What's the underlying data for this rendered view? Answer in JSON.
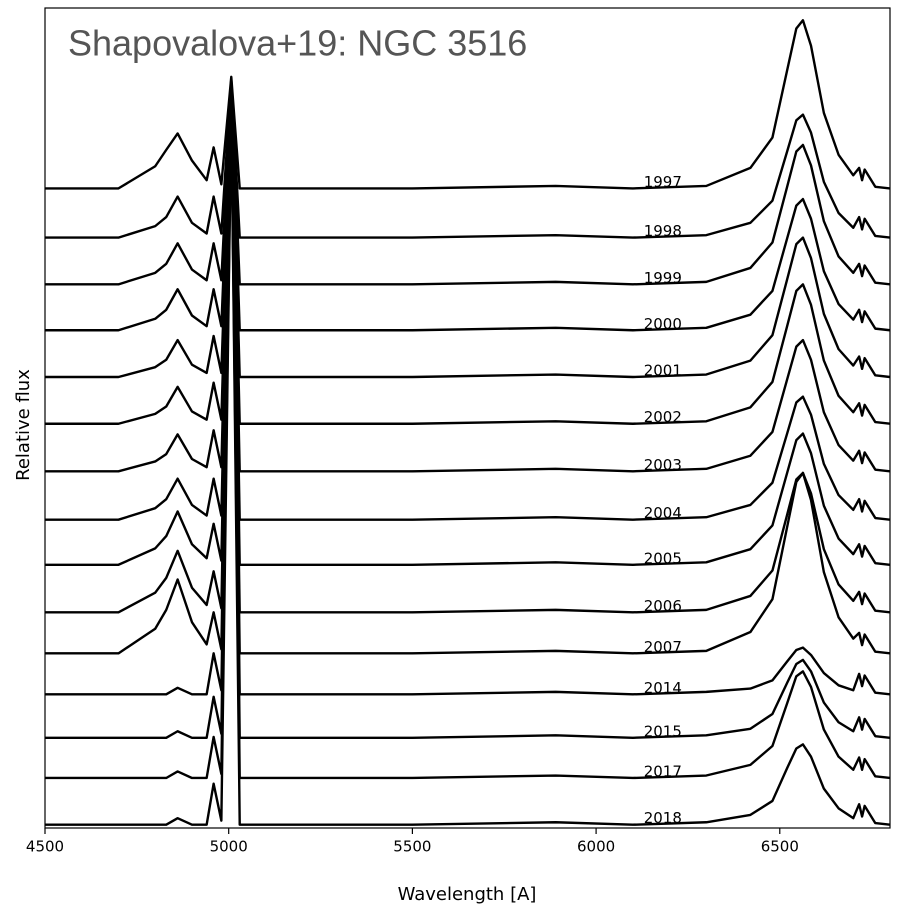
{
  "chart_data": {
    "type": "line",
    "title": "Shapovalova+19: NGC 3516",
    "x_label": "Wavelength [A]",
    "y_label": "Relative flux",
    "xlim": [
      4500,
      6800
    ],
    "xticks": [
      4500,
      5000,
      5500,
      6000,
      6500
    ],
    "ylim": [
      0,
      100
    ],
    "x": [
      4500,
      4700,
      4800,
      4830,
      4861,
      4900,
      4940,
      4959,
      4980,
      5007,
      5030,
      5200,
      5500,
      5890,
      6100,
      6300,
      6420,
      6480,
      6520,
      6545,
      6563,
      6585,
      6620,
      6660,
      6700,
      6716,
      6724,
      6731,
      6760,
      6800
    ],
    "series": [
      {
        "name": "1997",
        "color": "#000000",
        "values": [
          78,
          78,
          80.7,
          82.7,
          84.7,
          81.4,
          79.0,
          83.0,
          78.5,
          91.6,
          78,
          78,
          78,
          78.3,
          78,
          78.3,
          80.5,
          84.2,
          92.4,
          97.5,
          98.5,
          95.4,
          87.2,
          82.1,
          79.6,
          80.5,
          79,
          80.3,
          78.2,
          78
        ]
      },
      {
        "name": "1998",
        "color": "#000000",
        "values": [
          72,
          72,
          73.4,
          74.5,
          77.0,
          73.8,
          72.5,
          77,
          72.5,
          91.3,
          72,
          72,
          72,
          72.3,
          72,
          72.3,
          73.8,
          76.5,
          82.5,
          86.3,
          87,
          84.8,
          78.8,
          75,
          73.2,
          74.5,
          73,
          74.3,
          72.2,
          72
        ]
      },
      {
        "name": "1999",
        "color": "#000000",
        "values": [
          66.3,
          66.3,
          67.7,
          68.8,
          71.3,
          68.1,
          66.8,
          71.3,
          66.8,
          91.0,
          66.3,
          66.3,
          66.3,
          66.6,
          66.3,
          66.6,
          68.3,
          71.4,
          78.2,
          82.5,
          83.3,
          80.8,
          74.0,
          69.7,
          67.7,
          68.8,
          67.3,
          68.6,
          66.5,
          66.3
        ]
      },
      {
        "name": "2000",
        "color": "#000000",
        "values": [
          60.7,
          60.7,
          62.1,
          63.2,
          65.7,
          62.5,
          61.2,
          65.7,
          61.2,
          90.7,
          60.7,
          60.7,
          60.7,
          61.0,
          60.7,
          61.0,
          62.6,
          65.5,
          71.9,
          75.9,
          76.7,
          74.3,
          67.9,
          63.9,
          62.0,
          63.2,
          61.7,
          63.0,
          60.9,
          60.7
        ]
      },
      {
        "name": "2001",
        "color": "#000000",
        "values": [
          55,
          55,
          56.2,
          57.1,
          59.5,
          56.5,
          55.5,
          60,
          55.5,
          90.4,
          55,
          55,
          55,
          55.3,
          55,
          55.3,
          57.0,
          60.1,
          66.9,
          71.2,
          72,
          69.5,
          62.7,
          58.4,
          56.4,
          57.5,
          56,
          57.3,
          55.2,
          55
        ]
      },
      {
        "name": "2002",
        "color": "#000000",
        "values": [
          49.3,
          49.3,
          50.5,
          51.4,
          53.8,
          50.8,
          49.8,
          54.3,
          49.8,
          90.1,
          49.3,
          49.3,
          49.3,
          49.6,
          49.3,
          49.6,
          51.3,
          54.4,
          61.2,
          65.5,
          66.3,
          63.8,
          57.0,
          52.7,
          50.7,
          51.8,
          50.3,
          51.6,
          49.5,
          49.3
        ]
      },
      {
        "name": "2003",
        "color": "#000000",
        "values": [
          43.5,
          43.5,
          44.7,
          45.6,
          48.0,
          45.0,
          44.0,
          48.5,
          44.0,
          89.8,
          43.5,
          43.5,
          43.5,
          43.8,
          43.5,
          43.8,
          45.4,
          48.3,
          54.7,
          58.7,
          59.5,
          57.1,
          50.7,
          46.7,
          44.8,
          46.0,
          44.5,
          45.8,
          43.7,
          43.5
        ]
      },
      {
        "name": "2004",
        "color": "#000000",
        "values": [
          37.6,
          37.6,
          39.0,
          40.1,
          42.6,
          39.4,
          38.1,
          42.6,
          38.1,
          89.5,
          37.6,
          37.6,
          37.6,
          37.9,
          37.6,
          37.9,
          39.4,
          42.1,
          48.1,
          51.9,
          52.6,
          50.4,
          44.4,
          40.6,
          38.8,
          40.1,
          38.6,
          39.9,
          37.8,
          37.6
        ]
      },
      {
        "name": "2005",
        "color": "#000000",
        "values": [
          32.1,
          32.1,
          34.1,
          35.6,
          38.6,
          34.6,
          32.9,
          37.1,
          32.6,
          89.2,
          32.1,
          32.1,
          32.1,
          32.4,
          32.1,
          32.4,
          34.0,
          36.9,
          43.3,
          47.3,
          48.1,
          45.7,
          39.3,
          35.3,
          33.4,
          34.6,
          33.1,
          34.4,
          32.3,
          32.1
        ]
      },
      {
        "name": "2006",
        "color": "#000000",
        "values": [
          26.3,
          26.3,
          28.7,
          30.5,
          33.8,
          29.3,
          27.2,
          31.3,
          26.8,
          88.9,
          26.3,
          26.3,
          26.3,
          26.6,
          26.3,
          26.6,
          28.3,
          31.4,
          38.2,
          42.5,
          43.3,
          40.8,
          34.0,
          29.7,
          27.7,
          28.8,
          27.3,
          28.6,
          26.5,
          26.3
        ]
      },
      {
        "name": "2007",
        "color": "#000000",
        "values": [
          21.3,
          21.3,
          24.3,
          26.6,
          30.3,
          25.1,
          22.4,
          26.3,
          21.8,
          88.6,
          21.3,
          21.3,
          21.3,
          21.6,
          21.3,
          21.6,
          23.9,
          27.9,
          36.7,
          42.2,
          43.3,
          40.0,
          31.2,
          25.7,
          23.1,
          23.8,
          22.3,
          23.6,
          21.5,
          21.3
        ]
      },
      {
        "name": "2014",
        "color": "#000000",
        "values": [
          16.3,
          16.3,
          16.3,
          16.3,
          17.1,
          16.3,
          16.3,
          21.3,
          16.8,
          88.3,
          16.3,
          16.3,
          16.3,
          16.6,
          16.3,
          16.6,
          17.0,
          18.0,
          20.3,
          21.7,
          22.0,
          21.1,
          18.9,
          17.4,
          16.8,
          18.8,
          17.3,
          18.6,
          16.5,
          16.3
        ]
      },
      {
        "name": "2015",
        "color": "#000000",
        "values": [
          11,
          11,
          11,
          11,
          11.8,
          11,
          11,
          16,
          11.5,
          88.0,
          11,
          11,
          11,
          11.3,
          11,
          11.3,
          12.1,
          13.9,
          17.7,
          20.0,
          20.5,
          19.1,
          15.3,
          12.9,
          11.8,
          13.5,
          12,
          13.3,
          11.2,
          11
        ]
      },
      {
        "name": "2017",
        "color": "#000000",
        "values": [
          6.1,
          6.1,
          6.1,
          6.1,
          6.9,
          6.1,
          6.1,
          11.1,
          6.6,
          87.7,
          6.1,
          6.1,
          6.1,
          6.4,
          6.1,
          6.4,
          7.7,
          10.0,
          15.2,
          18.5,
          19.1,
          17.2,
          12.0,
          8.7,
          7.1,
          8.6,
          7.1,
          8.4,
          6.3,
          6.1
        ]
      },
      {
        "name": "2018",
        "color": "#000000",
        "values": [
          0.4,
          0.4,
          0.4,
          0.4,
          1.2,
          0.4,
          0.4,
          5.4,
          0.9,
          87.4,
          0.4,
          0.4,
          0.4,
          0.7,
          0.4,
          0.7,
          1.6,
          3.3,
          7.3,
          9.7,
          10.2,
          8.7,
          4.8,
          2.4,
          1.2,
          2.9,
          1.4,
          2.7,
          0.6,
          0.4
        ]
      }
    ]
  }
}
